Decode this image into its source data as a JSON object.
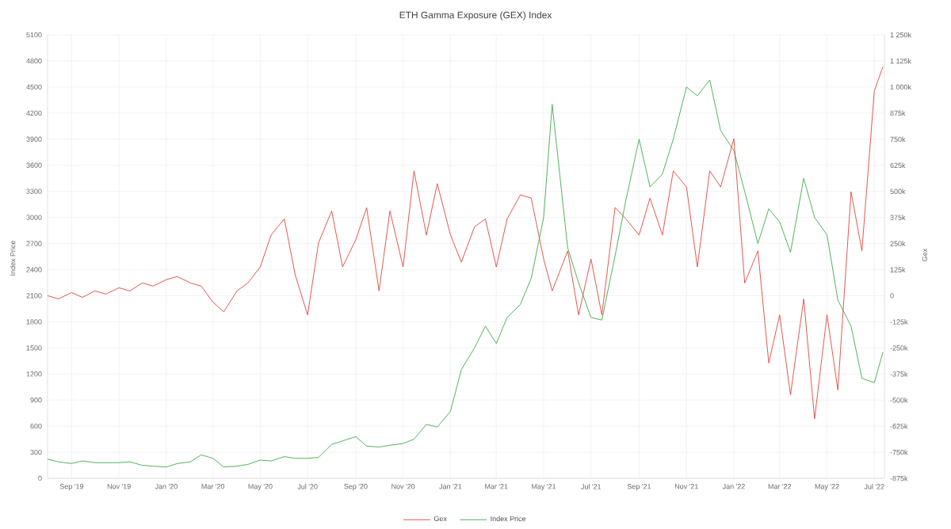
{
  "chart_data": {
    "type": "line",
    "title": "ETH Gamma Exposure (GEX) Index",
    "ylabel": "Index Price",
    "y2label": "Gex",
    "grid": true,
    "legend": "bottom",
    "x": [
      "2019-08-01",
      "2019-08-15",
      "2019-09-01",
      "2019-09-15",
      "2019-10-01",
      "2019-10-15",
      "2019-11-01",
      "2019-11-15",
      "2019-12-01",
      "2019-12-15",
      "2020-01-01",
      "2020-01-15",
      "2020-02-01",
      "2020-02-15",
      "2020-03-01",
      "2020-03-15",
      "2020-04-01",
      "2020-04-15",
      "2020-05-01",
      "2020-05-15",
      "2020-06-01",
      "2020-06-15",
      "2020-07-01",
      "2020-07-15",
      "2020-08-01",
      "2020-08-15",
      "2020-09-01",
      "2020-09-15",
      "2020-10-01",
      "2020-10-15",
      "2020-11-01",
      "2020-11-15",
      "2020-12-01",
      "2020-12-15",
      "2021-01-01",
      "2021-01-15",
      "2021-02-01",
      "2021-02-15",
      "2021-03-01",
      "2021-03-15",
      "2021-04-01",
      "2021-04-15",
      "2021-05-01",
      "2021-05-12",
      "2021-06-01",
      "2021-06-15",
      "2021-07-01",
      "2021-07-15",
      "2021-08-01",
      "2021-08-15",
      "2021-09-01",
      "2021-09-15",
      "2021-10-01",
      "2021-10-15",
      "2021-11-01",
      "2021-11-15",
      "2021-12-01",
      "2021-12-15",
      "2022-01-01",
      "2022-01-15",
      "2022-02-01",
      "2022-02-15",
      "2022-03-01",
      "2022-03-15",
      "2022-04-01",
      "2022-04-15",
      "2022-05-01",
      "2022-05-15",
      "2022-06-01",
      "2022-06-15",
      "2022-07-01",
      "2022-07-12"
    ],
    "series": [
      {
        "name": "Gex",
        "color": "#e2443c",
        "axis": "y2",
        "values": [
          0,
          -15000,
          15000,
          -8000,
          23000,
          8000,
          38000,
          23000,
          61000,
          46000,
          77000,
          92000,
          61000,
          46000,
          -31000,
          -77000,
          23000,
          61000,
          138000,
          291000,
          368000,
          100000,
          -92000,
          253000,
          406000,
          138000,
          268000,
          422000,
          23000,
          406000,
          138000,
          598000,
          291000,
          537000,
          291000,
          161000,
          330000,
          368000,
          138000,
          368000,
          483000,
          468000,
          176000,
          23000,
          215000,
          -92000,
          176000,
          -92000,
          422000,
          368000,
          291000,
          468000,
          291000,
          598000,
          521000,
          138000,
          598000,
          521000,
          752000,
          61000,
          215000,
          -322000,
          -92000,
          -475000,
          -15000,
          -590000,
          -92000,
          -452000,
          498000,
          215000,
          982000,
          1097000
        ]
      },
      {
        "name": "Index Price",
        "color": "#3daa4a",
        "values": [
          220,
          190,
          170,
          200,
          180,
          180,
          180,
          190,
          150,
          140,
          130,
          170,
          190,
          270,
          230,
          130,
          140,
          160,
          210,
          200,
          250,
          230,
          230,
          240,
          390,
          430,
          480,
          370,
          360,
          380,
          400,
          450,
          620,
          590,
          770,
          1250,
          1500,
          1750,
          1550,
          1850,
          2000,
          2300,
          3000,
          4300,
          2650,
          2250,
          1850,
          1820,
          2560,
          3200,
          3900,
          3350,
          3500,
          3900,
          4500,
          4400,
          4580,
          4000,
          3770,
          3300,
          2700,
          3100,
          2950,
          2600,
          3450,
          3000,
          2800,
          2050,
          1750,
          1150,
          1100,
          1450
        ]
      }
    ],
    "xlim": [
      "2019-08-01",
      "2022-07-14"
    ],
    "xticks": [
      {
        "value": "2019-09-01",
        "label": "Sep '19"
      },
      {
        "value": "2019-11-01",
        "label": "Nov '19"
      },
      {
        "value": "2020-01-01",
        "label": "Jan '20"
      },
      {
        "value": "2020-03-01",
        "label": "Mar '20"
      },
      {
        "value": "2020-05-01",
        "label": "May '20"
      },
      {
        "value": "2020-07-01",
        "label": "Jul '20"
      },
      {
        "value": "2020-09-01",
        "label": "Sep '20"
      },
      {
        "value": "2020-11-01",
        "label": "Nov '20"
      },
      {
        "value": "2021-01-01",
        "label": "Jan '21"
      },
      {
        "value": "2021-03-01",
        "label": "Mar '21"
      },
      {
        "value": "2021-05-01",
        "label": "May '21"
      },
      {
        "value": "2021-07-01",
        "label": "Jul '21"
      },
      {
        "value": "2021-09-01",
        "label": "Sep '21"
      },
      {
        "value": "2021-11-01",
        "label": "Nov '21"
      },
      {
        "value": "2022-01-01",
        "label": "Jan '22"
      },
      {
        "value": "2022-03-01",
        "label": "Mar '22"
      },
      {
        "value": "2022-05-01",
        "label": "May '22"
      },
      {
        "value": "2022-07-01",
        "label": "Jul '22"
      }
    ],
    "ylim": [
      0,
      5100
    ],
    "yticks": [
      0,
      300,
      600,
      900,
      1200,
      1500,
      1800,
      2100,
      2400,
      2700,
      3000,
      3300,
      3600,
      3900,
      4200,
      4500,
      4800,
      5100
    ],
    "y2lim": [
      -875000,
      1250000
    ],
    "y2ticks": [
      {
        "value": -875000,
        "label": "-875k"
      },
      {
        "value": -750000,
        "label": "-750k"
      },
      {
        "value": -625000,
        "label": "-625k"
      },
      {
        "value": -500000,
        "label": "-500k"
      },
      {
        "value": -375000,
        "label": "-375k"
      },
      {
        "value": -250000,
        "label": "-250k"
      },
      {
        "value": -125000,
        "label": "-125k"
      },
      0,
      {
        "value": 125000,
        "label": "125k"
      },
      {
        "value": 250000,
        "label": "250k"
      },
      {
        "value": 375000,
        "label": "375k"
      },
      {
        "value": 500000,
        "label": "500k"
      },
      {
        "value": 625000,
        "label": "625k"
      },
      {
        "value": 750000,
        "label": "750k"
      },
      {
        "value": 875000,
        "label": "875k"
      },
      {
        "value": 1000000,
        "label": "1 000k"
      },
      {
        "value": 1125000,
        "label": "1 125k"
      },
      {
        "value": 1250000,
        "label": "1 250k"
      }
    ]
  }
}
